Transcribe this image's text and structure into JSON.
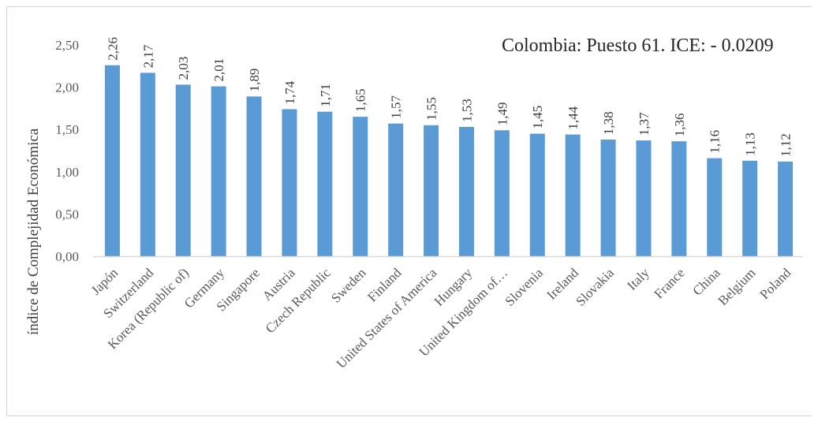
{
  "chart_data": {
    "type": "bar",
    "title": "",
    "xlabel": "",
    "ylabel": "índice de Complejidad Económica",
    "ylim": [
      0,
      2.5
    ],
    "yticks": [
      "0,00",
      "0,50",
      "1,00",
      "1,50",
      "2,00",
      "2,50"
    ],
    "ytick_values": [
      0,
      0.5,
      1.0,
      1.5,
      2.0,
      2.5
    ],
    "grid": false,
    "bar_color": "#5B9BD5",
    "categories": [
      "Japón",
      "Switzerland",
      "Korea (Republic of)",
      "Germany",
      "Singapore",
      "Austria",
      "Czech Republic",
      "Sweden",
      "Finland",
      "United States of America",
      "Hungary",
      "United Kingdom of…",
      "Slovenia",
      "Ireland",
      "Slovakia",
      "Italy",
      "France",
      "China",
      "Belgium",
      "Poland"
    ],
    "values": [
      2.26,
      2.17,
      2.03,
      2.01,
      1.89,
      1.74,
      1.71,
      1.65,
      1.57,
      1.55,
      1.53,
      1.49,
      1.45,
      1.44,
      1.38,
      1.37,
      1.36,
      1.16,
      1.13,
      1.12
    ],
    "data_labels": [
      "2,26",
      "2,17",
      "2,03",
      "2,01",
      "1,89",
      "1,74",
      "1,71",
      "1,65",
      "1,57",
      "1,55",
      "1,53",
      "1,49",
      "1,45",
      "1,44",
      "1,38",
      "1,37",
      "1,36",
      "1,16",
      "1,13",
      "1,12"
    ],
    "annotation": "Colombia: Puesto 61. ICE: - 0.0209"
  }
}
